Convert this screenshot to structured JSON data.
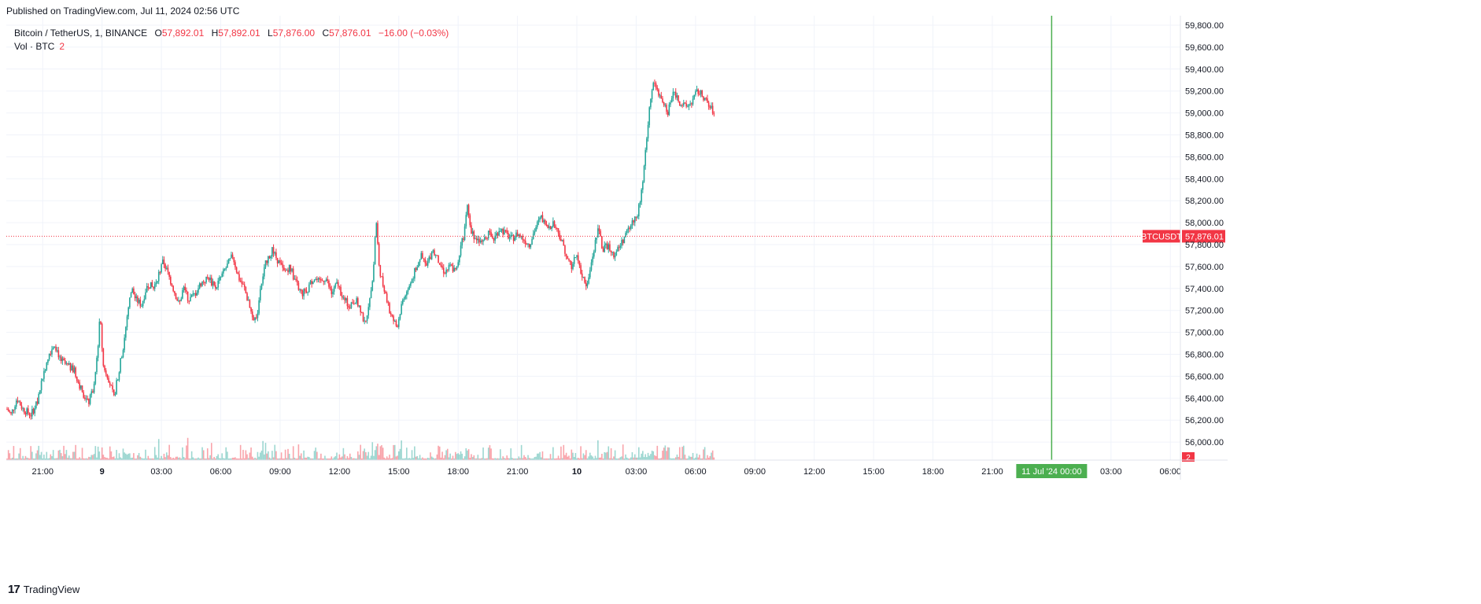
{
  "published": "Published on TradingView.com, Jul 11, 2024 02:56 UTC",
  "legend": {
    "symbol": "Bitcoin / TetherUS, 1, BINANCE",
    "open_label": "O",
    "open": "57,892.01",
    "high_label": "H",
    "high": "57,892.01",
    "low_label": "L",
    "low": "57,876.00",
    "close_label": "C",
    "close": "57,876.01",
    "change": "−16.00 (−0.03%)",
    "vol_label": "Vol · BTC",
    "vol_value": "2"
  },
  "footer": {
    "logo_text": "17",
    "name": "TradingView"
  },
  "colors": {
    "up": "#26a69a",
    "down": "#f23645",
    "grid": "#f0f3fa",
    "marker": "#4caf50",
    "text": "#131722"
  },
  "chart_data": {
    "type": "candlestick",
    "symbol": "BTCUSDT",
    "timeframe": "1",
    "exchange": "BINANCE",
    "y_axis": {
      "min": 55850,
      "max": 59870,
      "ticks": [
        "59,800.00",
        "59,600.00",
        "59,400.00",
        "59,200.00",
        "59,000.00",
        "58,800.00",
        "58,600.00",
        "58,400.00",
        "58,200.00",
        "58,000.00",
        "57,800.00",
        "57,600.00",
        "57,400.00",
        "57,200.00",
        "57,000.00",
        "56,800.00",
        "56,600.00",
        "56,400.00",
        "56,200.00",
        "56,000.00"
      ],
      "tick_values": [
        59800,
        59600,
        59400,
        59200,
        59000,
        58800,
        58600,
        58400,
        58200,
        58000,
        57800,
        57600,
        57400,
        57200,
        57000,
        56800,
        56600,
        56400,
        56200,
        56000
      ]
    },
    "x_axis": {
      "start_hour": 19.2,
      "end_hour": 55.0,
      "ticks": [
        {
          "label": "21:00",
          "hour": 21,
          "bold": false
        },
        {
          "label": "9",
          "hour": 24,
          "bold": true
        },
        {
          "label": "03:00",
          "hour": 27,
          "bold": false
        },
        {
          "label": "06:00",
          "hour": 30,
          "bold": false
        },
        {
          "label": "09:00",
          "hour": 33,
          "bold": false
        },
        {
          "label": "12:00",
          "hour": 36,
          "bold": false
        },
        {
          "label": "15:00",
          "hour": 39,
          "bold": false
        },
        {
          "label": "18:00",
          "hour": 42,
          "bold": false
        },
        {
          "label": "21:00",
          "hour": 45,
          "bold": false
        },
        {
          "label": "10",
          "hour": 48,
          "bold": true
        },
        {
          "label": "03:00",
          "hour": 51,
          "bold": false
        },
        {
          "label": "06:00",
          "hour": 54,
          "bold": false
        },
        {
          "label": "09:00",
          "hour": 57,
          "bold": false
        },
        {
          "label": "12:00",
          "hour": 60,
          "bold": false
        },
        {
          "label": "15:00",
          "hour": 63,
          "bold": false
        },
        {
          "label": "18:00",
          "hour": 66,
          "bold": false
        },
        {
          "label": "21:00",
          "hour": 69,
          "bold": false
        },
        {
          "label": "03:00",
          "hour": 75,
          "bold": false
        },
        {
          "label": "06:00",
          "hour": 78,
          "bold": false
        }
      ],
      "marker": {
        "label": "11 Jul '24  00:00",
        "hour": 72
      }
    },
    "last_price": {
      "label": "BTCUSDT",
      "value": "57,876.01",
      "price": 57876.01,
      "hour": 74.95
    },
    "volume_last": "2",
    "price_path": [
      [
        19.2,
        56300
      ],
      [
        19.4,
        56250
      ],
      [
        19.7,
        56400
      ],
      [
        20.0,
        56300
      ],
      [
        20.4,
        56250
      ],
      [
        20.7,
        56350
      ],
      [
        21.0,
        56600
      ],
      [
        21.3,
        56800
      ],
      [
        21.6,
        56900
      ],
      [
        21.9,
        56750
      ],
      [
        22.2,
        56700
      ],
      [
        22.6,
        56650
      ],
      [
        22.9,
        56500
      ],
      [
        23.3,
        56350
      ],
      [
        23.6,
        56500
      ],
      [
        23.8,
        56900
      ],
      [
        23.9,
        57200
      ],
      [
        24.05,
        56700
      ],
      [
        24.3,
        56600
      ],
      [
        24.6,
        56400
      ],
      [
        24.9,
        56700
      ],
      [
        25.1,
        56900
      ],
      [
        25.3,
        57200
      ],
      [
        25.5,
        57400
      ],
      [
        25.7,
        57300
      ],
      [
        26.0,
        57250
      ],
      [
        26.3,
        57450
      ],
      [
        26.6,
        57400
      ],
      [
        26.9,
        57550
      ],
      [
        27.1,
        57650
      ],
      [
        27.3,
        57550
      ],
      [
        27.6,
        57400
      ],
      [
        27.9,
        57250
      ],
      [
        28.1,
        57400
      ],
      [
        28.4,
        57300
      ],
      [
        28.7,
        57350
      ],
      [
        29.0,
        57450
      ],
      [
        29.4,
        57500
      ],
      [
        29.7,
        57400
      ],
      [
        30.0,
        57500
      ],
      [
        30.3,
        57600
      ],
      [
        30.6,
        57700
      ],
      [
        30.9,
        57500
      ],
      [
        31.2,
        57400
      ],
      [
        31.5,
        57200
      ],
      [
        31.8,
        57100
      ],
      [
        32.0,
        57400
      ],
      [
        32.3,
        57650
      ],
      [
        32.6,
        57750
      ],
      [
        32.9,
        57650
      ],
      [
        33.2,
        57550
      ],
      [
        33.5,
        57600
      ],
      [
        33.8,
        57450
      ],
      [
        34.1,
        57350
      ],
      [
        34.4,
        57400
      ],
      [
        34.7,
        57500
      ],
      [
        35.0,
        57450
      ],
      [
        35.3,
        57500
      ],
      [
        35.6,
        57350
      ],
      [
        35.9,
        57450
      ],
      [
        36.2,
        57300
      ],
      [
        36.5,
        57250
      ],
      [
        36.8,
        57300
      ],
      [
        37.1,
        57200
      ],
      [
        37.3,
        57050
      ],
      [
        37.5,
        57300
      ],
      [
        37.7,
        57500
      ],
      [
        37.85,
        58050
      ],
      [
        38.0,
        57600
      ],
      [
        38.3,
        57350
      ],
      [
        38.6,
        57150
      ],
      [
        38.9,
        57050
      ],
      [
        39.2,
        57300
      ],
      [
        39.5,
        57400
      ],
      [
        39.8,
        57550
      ],
      [
        40.1,
        57700
      ],
      [
        40.4,
        57600
      ],
      [
        40.7,
        57750
      ],
      [
        41.0,
        57650
      ],
      [
        41.3,
        57550
      ],
      [
        41.6,
        57600
      ],
      [
        41.9,
        57550
      ],
      [
        42.1,
        57750
      ],
      [
        42.3,
        57900
      ],
      [
        42.45,
        58200
      ],
      [
        42.6,
        57950
      ],
      [
        42.9,
        57850
      ],
      [
        43.2,
        57800
      ],
      [
        43.5,
        57900
      ],
      [
        43.8,
        57850
      ],
      [
        44.1,
        57950
      ],
      [
        44.4,
        57900
      ],
      [
        44.7,
        57850
      ],
      [
        45.0,
        57900
      ],
      [
        45.3,
        57850
      ],
      [
        45.6,
        57800
      ],
      [
        45.9,
        57950
      ],
      [
        46.2,
        58050
      ],
      [
        46.5,
        57950
      ],
      [
        46.8,
        58000
      ],
      [
        47.1,
        57900
      ],
      [
        47.4,
        57750
      ],
      [
        47.7,
        57600
      ],
      [
        48.0,
        57700
      ],
      [
        48.3,
        57500
      ],
      [
        48.5,
        57400
      ],
      [
        48.7,
        57600
      ],
      [
        48.9,
        57800
      ],
      [
        49.1,
        57950
      ],
      [
        49.3,
        57750
      ],
      [
        49.6,
        57800
      ],
      [
        49.9,
        57700
      ],
      [
        50.2,
        57800
      ],
      [
        50.5,
        57900
      ],
      [
        50.8,
        58000
      ],
      [
        51.1,
        58100
      ],
      [
        51.3,
        58300
      ],
      [
        51.5,
        58700
      ],
      [
        51.7,
        59100
      ],
      [
        51.9,
        59300
      ],
      [
        52.1,
        59200
      ],
      [
        52.4,
        59100
      ],
      [
        52.6,
        59000
      ],
      [
        52.9,
        59200
      ],
      [
        53.2,
        59100
      ],
      [
        53.5,
        59050
      ],
      [
        53.8,
        59100
      ],
      [
        54.1,
        59200
      ],
      [
        54.4,
        59150
      ],
      [
        54.7,
        59050
      ],
      [
        55.0,
        59000
      ]
    ]
  }
}
